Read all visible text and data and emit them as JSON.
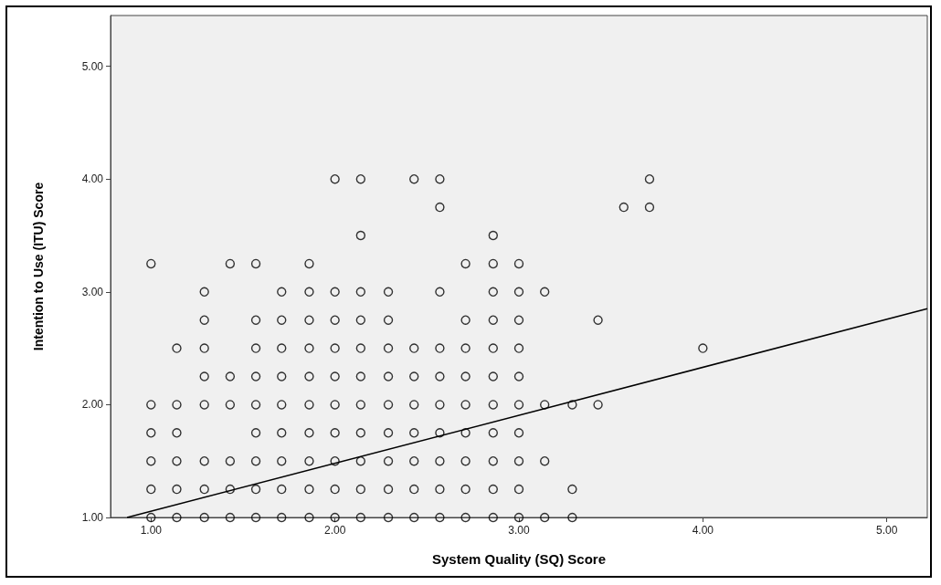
{
  "chart_data": {
    "type": "scatter",
    "xlabel": "System Quality (SQ) Score",
    "ylabel": "Intention to Use (ITU) Score",
    "marker": "circle",
    "grid": false,
    "xlim": [
      0.78,
      5.22
    ],
    "ylim": [
      1,
      5.45
    ],
    "xticks": [
      {
        "value": 1,
        "label": "1.00"
      },
      {
        "value": 2,
        "label": "2.00"
      },
      {
        "value": 3,
        "label": "3.00"
      },
      {
        "value": 4,
        "label": "4.00"
      },
      {
        "value": 5,
        "label": "5.00"
      }
    ],
    "yticks": [
      {
        "value": 1,
        "label": "1.00"
      },
      {
        "value": 2,
        "label": "2.00"
      },
      {
        "value": 3,
        "label": "3.00"
      },
      {
        "value": 4,
        "label": "4.00"
      },
      {
        "value": 5,
        "label": "5.00"
      }
    ],
    "series": [
      {
        "color": "#000000",
        "x": [
          1,
          1.14,
          1.29,
          1.43,
          1.57,
          1.71,
          1.86,
          2,
          2.14,
          2.29,
          2.43,
          2.57,
          2.71,
          2.86,
          3,
          3.14,
          3.29
        ],
        "values": [
          1,
          1,
          1,
          1,
          1,
          1,
          1,
          1,
          1,
          1,
          1,
          1,
          1,
          1,
          1,
          1,
          1
        ]
      },
      {
        "color": "#000000",
        "x": [
          1,
          1.14,
          1.29,
          1.43,
          1.57,
          1.71,
          1.86,
          2,
          2.14,
          2.29,
          2.43,
          2.57,
          2.71,
          2.86,
          3,
          3.29
        ],
        "values": [
          1.25,
          1.25,
          1.25,
          1.25,
          1.25,
          1.25,
          1.25,
          1.25,
          1.25,
          1.25,
          1.25,
          1.25,
          1.25,
          1.25,
          1.25,
          1.25
        ]
      },
      {
        "color": "#000000",
        "x": [
          1,
          1.14,
          1.29,
          1.43,
          1.57,
          1.71,
          1.86,
          2,
          2.14,
          2.29,
          2.43,
          2.57,
          2.71,
          2.86,
          3,
          3.14
        ],
        "values": [
          1.5,
          1.5,
          1.5,
          1.5,
          1.5,
          1.5,
          1.5,
          1.5,
          1.5,
          1.5,
          1.5,
          1.5,
          1.5,
          1.5,
          1.5,
          1.5
        ]
      },
      {
        "color": "#000000",
        "x": [
          1,
          1.14,
          1.57,
          1.71,
          1.86,
          2,
          2.14,
          2.29,
          2.43,
          2.57,
          2.71,
          2.86,
          3
        ],
        "values": [
          1.75,
          1.75,
          1.75,
          1.75,
          1.75,
          1.75,
          1.75,
          1.75,
          1.75,
          1.75,
          1.75,
          1.75,
          1.75
        ]
      },
      {
        "color": "#000000",
        "x": [
          1,
          1.14,
          1.29,
          1.43,
          1.57,
          1.71,
          1.86,
          2,
          2.14,
          2.29,
          2.43,
          2.57,
          2.71,
          2.86,
          3,
          3.14,
          3.29,
          3.43
        ],
        "values": [
          2,
          2,
          2,
          2,
          2,
          2,
          2,
          2,
          2,
          2,
          2,
          2,
          2,
          2,
          2,
          2,
          2,
          2
        ]
      },
      {
        "color": "#000000",
        "x": [
          1.29,
          1.43,
          1.57,
          1.71,
          1.86,
          2,
          2.14,
          2.29,
          2.43,
          2.57,
          2.71,
          2.86,
          3
        ],
        "values": [
          2.25,
          2.25,
          2.25,
          2.25,
          2.25,
          2.25,
          2.25,
          2.25,
          2.25,
          2.25,
          2.25,
          2.25,
          2.25
        ]
      },
      {
        "color": "#000000",
        "x": [
          1.14,
          1.29,
          1.57,
          1.71,
          1.86,
          2,
          2.14,
          2.29,
          2.43,
          2.57,
          2.71,
          2.86,
          3,
          4
        ],
        "values": [
          2.5,
          2.5,
          2.5,
          2.5,
          2.5,
          2.5,
          2.5,
          2.5,
          2.5,
          2.5,
          2.5,
          2.5,
          2.5,
          2.5
        ]
      },
      {
        "color": "#000000",
        "x": [
          1.29,
          1.57,
          1.71,
          1.86,
          2,
          2.14,
          2.29,
          2.71,
          2.86,
          3,
          3.43
        ],
        "values": [
          2.75,
          2.75,
          2.75,
          2.75,
          2.75,
          2.75,
          2.75,
          2.75,
          2.75,
          2.75,
          2.75
        ]
      },
      {
        "color": "#000000",
        "x": [
          1.29,
          1.71,
          1.86,
          2,
          2.14,
          2.29,
          2.57,
          2.86,
          3,
          3.14
        ],
        "values": [
          3,
          3,
          3,
          3,
          3,
          3,
          3,
          3,
          3,
          3
        ]
      },
      {
        "color": "#000000",
        "x": [
          1,
          1.43,
          1.57,
          1.86,
          2.71,
          2.86,
          3
        ],
        "values": [
          3.25,
          3.25,
          3.25,
          3.25,
          3.25,
          3.25,
          3.25
        ]
      },
      {
        "color": "#000000",
        "x": [
          2.14,
          2.86
        ],
        "values": [
          3.5,
          3.5
        ]
      },
      {
        "color": "#000000",
        "x": [
          2.57,
          3.57,
          3.71
        ],
        "values": [
          3.75,
          3.75,
          3.75
        ]
      },
      {
        "color": "#000000",
        "x": [
          2,
          2.14,
          2.43,
          2.57,
          3.71
        ],
        "values": [
          4,
          4,
          4,
          4,
          4
        ]
      },
      {
        "type": "line",
        "marker": "none",
        "color": "#000000",
        "x": [
          0.87,
          5.22
        ],
        "values": [
          1,
          2.85
        ]
      }
    ]
  }
}
